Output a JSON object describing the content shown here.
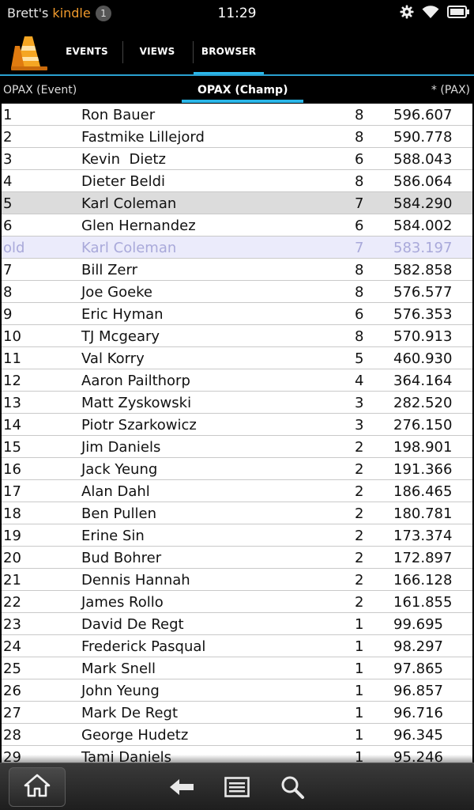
{
  "status_bar": {
    "owner": "Brett's",
    "device": "kindle",
    "notifications": "1",
    "time": "11:29",
    "icons": [
      "gear-icon",
      "wifi-icon",
      "battery-icon"
    ]
  },
  "app_bar": {
    "logo_icon": "traffic-cone-icon",
    "tabs": [
      {
        "label": "EVENTS"
      },
      {
        "label": "VIEWS"
      },
      {
        "label": "BROWSER",
        "active": true
      }
    ],
    "accent_color": "#2bb6e8"
  },
  "sub_tabs": [
    {
      "label": "OPAX (Event)"
    },
    {
      "label": "OPAX (Champ)",
      "active": true
    },
    {
      "label": "* (PAX)"
    }
  ],
  "standings": [
    {
      "rank": "1",
      "name": "Ron Bauer",
      "events": "8",
      "score": "596.607"
    },
    {
      "rank": "2",
      "name": "Fastmike Lillejord",
      "events": "8",
      "score": "590.778"
    },
    {
      "rank": "3",
      "name": "Kevin  Dietz",
      "events": "6",
      "score": "588.043"
    },
    {
      "rank": "4",
      "name": "Dieter Beldi",
      "events": "8",
      "score": "586.064"
    },
    {
      "rank": "5",
      "name": "Karl Coleman",
      "events": "7",
      "score": "584.290",
      "highlight": true
    },
    {
      "rank": "6",
      "name": "Glen Hernandez",
      "events": "6",
      "score": "584.002"
    },
    {
      "rank": "old",
      "name": "Karl Coleman",
      "events": "7",
      "score": "583.197",
      "old": true
    },
    {
      "rank": "7",
      "name": "Bill Zerr",
      "events": "8",
      "score": "582.858"
    },
    {
      "rank": "8",
      "name": "Joe Goeke",
      "events": "8",
      "score": "576.577"
    },
    {
      "rank": "9",
      "name": "Eric Hyman",
      "events": "6",
      "score": "576.353"
    },
    {
      "rank": "10",
      "name": "TJ Mcgeary",
      "events": "8",
      "score": "570.913"
    },
    {
      "rank": "11",
      "name": "Val Korry",
      "events": "5",
      "score": "460.930"
    },
    {
      "rank": "12",
      "name": "Aaron Pailthorp",
      "events": "4",
      "score": "364.164"
    },
    {
      "rank": "13",
      "name": "Matt Zyskowski",
      "events": "3",
      "score": "282.520"
    },
    {
      "rank": "14",
      "name": "Piotr Szarkowicz",
      "events": "3",
      "score": "276.150"
    },
    {
      "rank": "15",
      "name": "Jim Daniels",
      "events": "2",
      "score": "198.901"
    },
    {
      "rank": "16",
      "name": "Jack Yeung",
      "events": "2",
      "score": "191.366"
    },
    {
      "rank": "17",
      "name": "Alan Dahl",
      "events": "2",
      "score": "186.465"
    },
    {
      "rank": "18",
      "name": "Ben Pullen",
      "events": "2",
      "score": "180.781"
    },
    {
      "rank": "19",
      "name": "Erine Sin",
      "events": "2",
      "score": "173.374"
    },
    {
      "rank": "20",
      "name": "Bud Bohrer",
      "events": "2",
      "score": "172.897"
    },
    {
      "rank": "21",
      "name": "Dennis Hannah",
      "events": "2",
      "score": "166.128"
    },
    {
      "rank": "22",
      "name": "James Rollo",
      "events": "2",
      "score": "161.855"
    },
    {
      "rank": "23",
      "name": "David De Regt",
      "events": "1",
      "score": "99.695"
    },
    {
      "rank": "24",
      "name": "Frederick Pasqual",
      "events": "1",
      "score": "98.297"
    },
    {
      "rank": "25",
      "name": "Mark Snell",
      "events": "1",
      "score": "97.865"
    },
    {
      "rank": "26",
      "name": "John Yeung",
      "events": "1",
      "score": "96.857"
    },
    {
      "rank": "27",
      "name": "Mark De Regt",
      "events": "1",
      "score": "96.716"
    },
    {
      "rank": "28",
      "name": "George Hudetz",
      "events": "1",
      "score": "96.345"
    },
    {
      "rank": "29",
      "name": "Tami Daniels",
      "events": "1",
      "score": "95.246"
    }
  ],
  "nav_bar": {
    "icons": [
      "home-icon",
      "back-icon",
      "menu-icon",
      "search-icon"
    ]
  }
}
